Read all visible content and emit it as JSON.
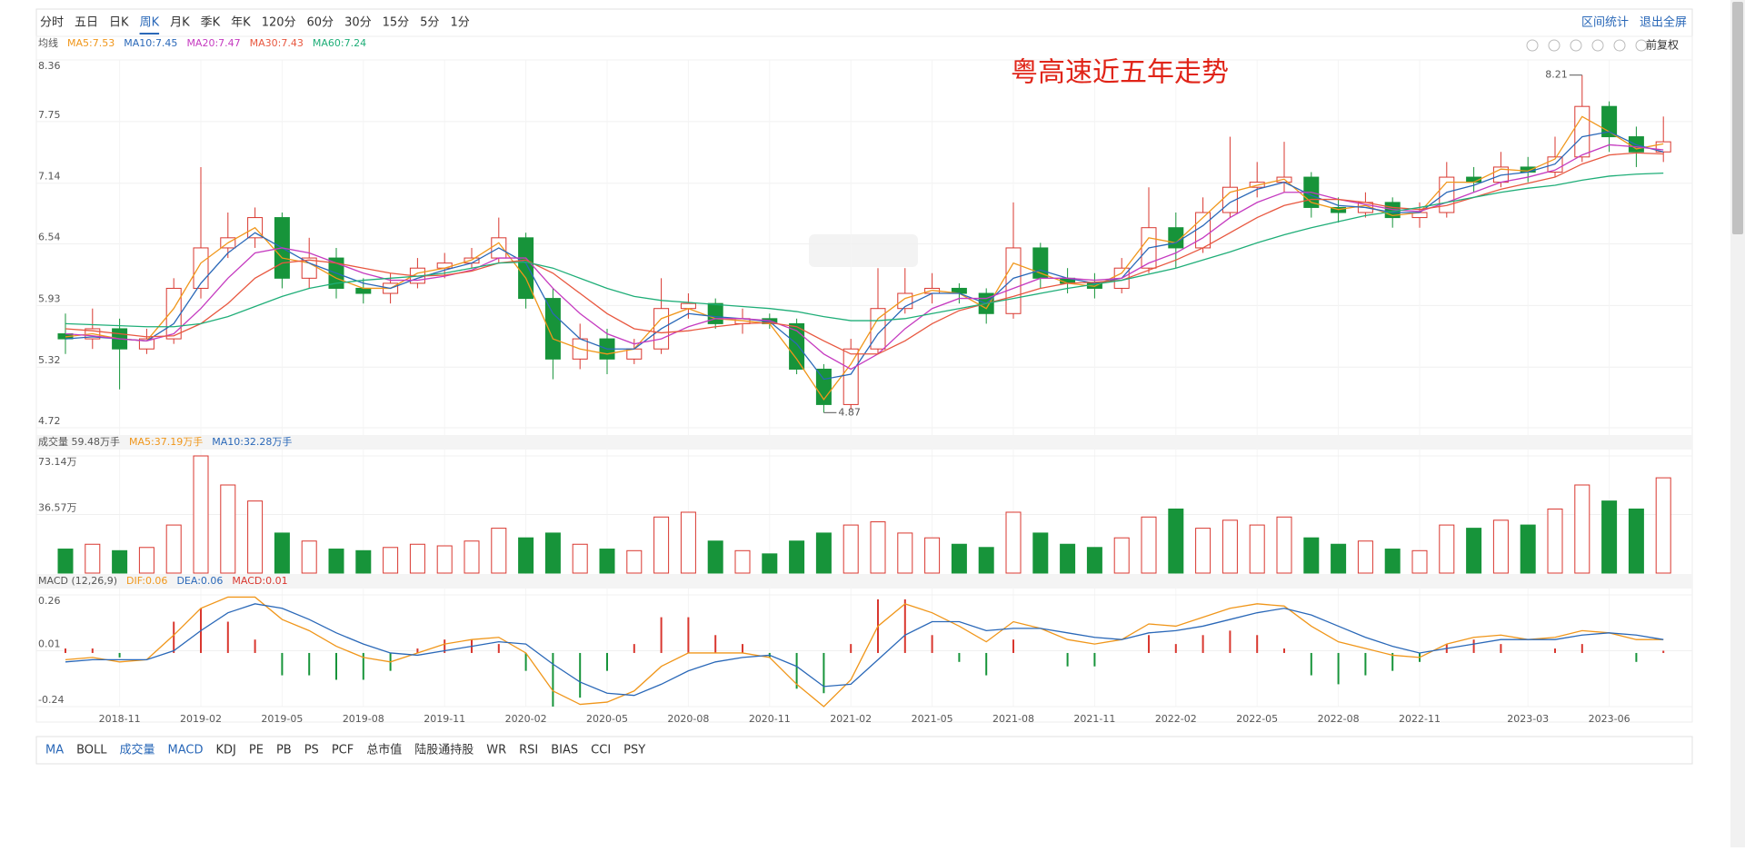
{
  "toolbar": {
    "periods": [
      "分时",
      "五日",
      "日K",
      "周K",
      "月K",
      "季K",
      "年K",
      "120分",
      "60分",
      "30分",
      "15分",
      "5分",
      "1分"
    ],
    "active_period": "周K",
    "links": [
      "区间统计",
      "退出全屏"
    ],
    "adjust": "前复权"
  },
  "chart_data": [
    {
      "type": "candlestick",
      "title": "粤高速近五年走势",
      "legend_title": "均线",
      "categories": [
        null,
        null,
        "2018-11",
        null,
        null,
        "2019-02",
        null,
        null,
        "2019-05",
        null,
        null,
        "2019-08",
        null,
        null,
        "2019-11",
        null,
        null,
        "2020-02",
        null,
        null,
        "2020-05",
        null,
        null,
        "2020-08",
        null,
        null,
        "2020-11",
        null,
        null,
        "2021-02",
        null,
        null,
        "2021-05",
        null,
        null,
        "2021-08",
        null,
        null,
        "2021-11",
        null,
        null,
        "2022-02",
        null,
        null,
        "2022-05",
        null,
        null,
        "2022-08",
        null,
        null,
        "2022-11",
        null,
        null,
        null,
        "2023-03",
        null,
        null,
        "2023-06",
        null,
        null
      ],
      "open": [
        5.65,
        5.6,
        5.7,
        5.5,
        5.6,
        6.1,
        6.5,
        6.6,
        6.8,
        6.2,
        6.4,
        6.1,
        6.05,
        6.15,
        6.3,
        6.35,
        6.4,
        6.6,
        6.0,
        5.4,
        5.6,
        5.4,
        5.5,
        5.9,
        5.95,
        5.75,
        5.8,
        5.75,
        5.3,
        4.95,
        5.5,
        5.9,
        6.05,
        6.1,
        6.05,
        5.85,
        6.5,
        6.2,
        6.15,
        6.1,
        6.3,
        6.7,
        6.5,
        6.85,
        7.1,
        7.15,
        7.2,
        6.9,
        6.85,
        6.95,
        6.8,
        6.85,
        7.2,
        7.15,
        7.3,
        7.25,
        7.4,
        7.9,
        7.6,
        7.45
      ],
      "high": [
        5.85,
        5.9,
        5.8,
        5.7,
        6.2,
        7.3,
        6.85,
        6.9,
        6.85,
        6.6,
        6.5,
        6.2,
        6.25,
        6.4,
        6.45,
        6.5,
        6.8,
        6.65,
        6.1,
        5.75,
        5.7,
        5.6,
        6.2,
        6.05,
        6.0,
        5.9,
        5.85,
        5.8,
        5.35,
        5.6,
        6.3,
        6.3,
        6.25,
        6.15,
        6.1,
        6.95,
        6.55,
        6.3,
        6.25,
        6.4,
        7.1,
        6.85,
        7.0,
        7.6,
        7.35,
        7.55,
        7.25,
        7.0,
        7.05,
        7.0,
        6.95,
        7.35,
        7.3,
        7.45,
        7.4,
        7.6,
        8.21,
        7.95,
        7.7,
        7.8
      ],
      "low": [
        5.45,
        5.5,
        5.1,
        5.45,
        5.55,
        6.0,
        6.4,
        6.5,
        6.1,
        6.1,
        6.0,
        5.95,
        5.95,
        6.1,
        6.2,
        6.3,
        6.35,
        5.9,
        5.2,
        5.3,
        5.25,
        5.35,
        5.45,
        5.8,
        5.7,
        5.65,
        5.7,
        5.25,
        4.87,
        4.9,
        5.45,
        5.85,
        5.95,
        5.95,
        5.75,
        5.8,
        6.1,
        6.05,
        6.0,
        6.05,
        6.25,
        6.3,
        6.45,
        6.8,
        7.0,
        7.05,
        6.8,
        6.75,
        6.8,
        6.7,
        6.7,
        6.8,
        7.05,
        7.1,
        7.15,
        7.2,
        7.35,
        7.45,
        7.3,
        7.35
      ],
      "close": [
        5.6,
        5.7,
        5.5,
        5.6,
        6.1,
        6.5,
        6.6,
        6.8,
        6.2,
        6.4,
        6.1,
        6.05,
        6.15,
        6.3,
        6.35,
        6.4,
        6.6,
        6.0,
        5.4,
        5.6,
        5.4,
        5.5,
        5.9,
        5.95,
        5.75,
        5.8,
        5.75,
        5.3,
        4.95,
        5.5,
        5.9,
        6.05,
        6.1,
        6.05,
        5.85,
        6.5,
        6.2,
        6.15,
        6.1,
        6.3,
        6.7,
        6.5,
        6.85,
        7.1,
        7.15,
        7.2,
        6.9,
        6.85,
        6.95,
        6.8,
        6.85,
        7.2,
        7.15,
        7.3,
        7.25,
        7.4,
        7.9,
        7.6,
        7.45,
        7.55
      ],
      "up_color": "#d9372f",
      "down_color": "#17943a",
      "series": [
        {
          "name": "MA5:7.53",
          "color": "#f0961a",
          "values": [
            5.62,
            5.65,
            5.6,
            5.58,
            5.9,
            6.35,
            6.55,
            6.7,
            6.4,
            6.35,
            6.2,
            6.1,
            6.1,
            6.25,
            6.3,
            6.38,
            6.55,
            6.2,
            5.6,
            5.5,
            5.45,
            5.5,
            5.8,
            5.9,
            5.8,
            5.78,
            5.75,
            5.4,
            5.0,
            5.35,
            5.8,
            6.0,
            6.08,
            6.05,
            5.9,
            6.35,
            6.25,
            6.15,
            6.12,
            6.25,
            6.6,
            6.55,
            6.8,
            7.05,
            7.12,
            7.18,
            6.95,
            6.88,
            6.92,
            6.82,
            6.85,
            7.15,
            7.15,
            7.28,
            7.26,
            7.38,
            7.8,
            7.65,
            7.48,
            7.53
          ]
        },
        {
          "name": "MA10:7.45",
          "color": "#2a68b8",
          "values": [
            5.6,
            5.62,
            5.6,
            5.58,
            5.75,
            6.15,
            6.45,
            6.65,
            6.5,
            6.35,
            6.25,
            6.15,
            6.1,
            6.2,
            6.28,
            6.35,
            6.5,
            6.35,
            5.85,
            5.6,
            5.5,
            5.5,
            5.7,
            5.85,
            5.82,
            5.8,
            5.77,
            5.55,
            5.2,
            5.25,
            5.65,
            5.92,
            6.05,
            6.05,
            5.95,
            6.2,
            6.28,
            6.2,
            6.15,
            6.2,
            6.5,
            6.55,
            6.72,
            6.95,
            7.08,
            7.15,
            7.02,
            6.92,
            6.9,
            6.85,
            6.85,
            7.05,
            7.12,
            7.22,
            7.25,
            7.33,
            7.6,
            7.65,
            7.52,
            7.45
          ]
        },
        {
          "name": "MA20:7.47",
          "color": "#c53bc0",
          "values": [
            5.65,
            5.63,
            5.6,
            5.58,
            5.65,
            5.9,
            6.2,
            6.45,
            6.5,
            6.45,
            6.35,
            6.25,
            6.18,
            6.18,
            6.22,
            6.28,
            6.4,
            6.4,
            6.1,
            5.85,
            5.65,
            5.55,
            5.6,
            5.72,
            5.8,
            5.8,
            5.78,
            5.68,
            5.45,
            5.3,
            5.45,
            5.7,
            5.9,
            6.0,
            6.0,
            6.1,
            6.2,
            6.2,
            6.18,
            6.2,
            6.35,
            6.45,
            6.6,
            6.8,
            6.95,
            7.05,
            7.05,
            6.98,
            6.93,
            6.88,
            6.86,
            6.95,
            7.05,
            7.15,
            7.2,
            7.27,
            7.42,
            7.52,
            7.5,
            7.47
          ]
        },
        {
          "name": "MA30:7.43",
          "color": "#e8573f",
          "values": [
            5.7,
            5.68,
            5.65,
            5.62,
            5.63,
            5.75,
            5.95,
            6.2,
            6.35,
            6.38,
            6.35,
            6.3,
            6.25,
            6.22,
            6.23,
            6.27,
            6.35,
            6.38,
            6.25,
            6.05,
            5.85,
            5.7,
            5.66,
            5.68,
            5.72,
            5.75,
            5.76,
            5.72,
            5.58,
            5.45,
            5.45,
            5.58,
            5.75,
            5.88,
            5.95,
            6.02,
            6.1,
            6.15,
            6.16,
            6.18,
            6.28,
            6.38,
            6.5,
            6.65,
            6.8,
            6.92,
            6.98,
            6.98,
            6.95,
            6.9,
            6.88,
            6.92,
            7.0,
            7.08,
            7.14,
            7.2,
            7.33,
            7.42,
            7.44,
            7.43
          ]
        },
        {
          "name": "MA60:7.24",
          "color": "#1fae78",
          "values": [
            5.75,
            5.74,
            5.73,
            5.72,
            5.72,
            5.75,
            5.82,
            5.92,
            6.02,
            6.1,
            6.15,
            6.18,
            6.2,
            6.22,
            6.25,
            6.3,
            6.35,
            6.36,
            6.3,
            6.2,
            6.1,
            6.02,
            5.98,
            5.96,
            5.94,
            5.92,
            5.9,
            5.87,
            5.82,
            5.78,
            5.78,
            5.8,
            5.85,
            5.9,
            5.95,
            6.0,
            6.05,
            6.1,
            6.14,
            6.18,
            6.24,
            6.3,
            6.38,
            6.46,
            6.55,
            6.63,
            6.7,
            6.76,
            6.82,
            6.86,
            6.9,
            6.95,
            7.0,
            7.05,
            7.09,
            7.12,
            7.17,
            7.21,
            7.23,
            7.24
          ]
        }
      ],
      "high_mark": 8.21,
      "low_mark": 4.87,
      "ylim": [
        4.72,
        8.36
      ],
      "yticks": [
        4.72,
        5.32,
        5.93,
        6.54,
        7.14,
        7.75,
        8.36
      ]
    },
    {
      "type": "volume",
      "legend": [
        "成交量 59.48万手",
        "MA5:37.19万手",
        "MA10:32.28万手"
      ],
      "legend_colors": [
        "#555555",
        "#f0961a",
        "#2a68b8"
      ],
      "values": [
        15,
        18,
        14,
        16,
        30,
        73.14,
        55,
        45,
        25,
        20,
        15,
        14,
        16,
        18,
        17,
        20,
        28,
        22,
        25,
        18,
        15,
        14,
        35,
        38,
        20,
        14,
        12,
        20,
        25,
        30,
        32,
        25,
        22,
        18,
        16,
        38,
        25,
        18,
        16,
        22,
        35,
        40,
        28,
        33,
        30,
        35,
        22,
        18,
        20,
        15,
        14,
        30,
        28,
        33,
        30,
        40,
        55,
        45,
        40,
        59.48
      ],
      "ylim": [
        0,
        73.14
      ],
      "yticks": [
        {
          "value": 36.57,
          "label": "36.57万"
        },
        {
          "value": 73.14,
          "label": "73.14万"
        }
      ]
    },
    {
      "type": "macd",
      "legend": [
        "MACD (12,26,9)",
        "DIF:0.06",
        "DEA:0.06",
        "MACD:0.01"
      ],
      "legend_colors": [
        "#555555",
        "#f0961a",
        "#2a68b8",
        "#d9372f"
      ],
      "series": [
        {
          "name": "DIF",
          "color": "#f0961a",
          "values": [
            -0.03,
            -0.02,
            -0.04,
            -0.03,
            0.08,
            0.2,
            0.25,
            0.25,
            0.15,
            0.1,
            0.03,
            -0.02,
            -0.04,
            0.0,
            0.04,
            0.06,
            0.07,
            0.0,
            -0.17,
            -0.23,
            -0.22,
            -0.17,
            -0.06,
            0.0,
            0.0,
            0.0,
            -0.02,
            -0.14,
            -0.24,
            -0.12,
            0.12,
            0.22,
            0.18,
            0.12,
            0.05,
            0.14,
            0.11,
            0.06,
            0.04,
            0.06,
            0.13,
            0.12,
            0.16,
            0.2,
            0.22,
            0.21,
            0.12,
            0.05,
            0.02,
            -0.01,
            -0.02,
            0.04,
            0.07,
            0.08,
            0.06,
            0.07,
            0.1,
            0.09,
            0.06,
            0.06
          ]
        },
        {
          "name": "DEA",
          "color": "#2a68b8",
          "values": [
            -0.04,
            -0.03,
            -0.03,
            -0.03,
            0.01,
            0.1,
            0.18,
            0.22,
            0.2,
            0.15,
            0.09,
            0.04,
            0.0,
            -0.01,
            0.01,
            0.03,
            0.05,
            0.04,
            -0.05,
            -0.13,
            -0.18,
            -0.19,
            -0.14,
            -0.08,
            -0.04,
            -0.02,
            -0.01,
            -0.06,
            -0.15,
            -0.14,
            -0.03,
            0.08,
            0.14,
            0.14,
            0.1,
            0.11,
            0.11,
            0.09,
            0.07,
            0.06,
            0.09,
            0.1,
            0.12,
            0.15,
            0.18,
            0.2,
            0.17,
            0.12,
            0.07,
            0.03,
            0.0,
            0.02,
            0.04,
            0.06,
            0.06,
            0.06,
            0.08,
            0.09,
            0.08,
            0.06
          ]
        }
      ],
      "histogram": [
        0.02,
        0.02,
        -0.02,
        0,
        0.14,
        0.2,
        0.14,
        0.06,
        -0.1,
        -0.1,
        -0.12,
        -0.12,
        -0.08,
        0.02,
        0.06,
        0.06,
        0.04,
        -0.08,
        -0.24,
        -0.2,
        -0.08,
        0.04,
        0.16,
        0.16,
        0.08,
        0.04,
        -0.02,
        -0.16,
        -0.18,
        0.04,
        0.24,
        0.24,
        0.08,
        -0.04,
        -0.1,
        0.06,
        0,
        -0.06,
        -0.06,
        0,
        0.08,
        0.04,
        0.08,
        0.1,
        0.08,
        0.02,
        -0.1,
        -0.14,
        -0.1,
        -0.08,
        -0.04,
        0.04,
        0.06,
        0.04,
        0,
        0.02,
        0.04,
        0,
        -0.04,
        0.01
      ],
      "ylim": [
        -0.24,
        0.26
      ],
      "yticks": [
        -0.24,
        0.01,
        0.26
      ]
    }
  ],
  "indicator_tabs": [
    "MA",
    "BOLL",
    "成交量",
    "MACD",
    "KDJ",
    "PE",
    "PB",
    "PS",
    "PCF",
    "总市值",
    "陆股通持股",
    "WR",
    "RSI",
    "BIAS",
    "CCI",
    "PSY"
  ],
  "active_indicators": [
    "MA",
    "成交量",
    "MACD"
  ]
}
